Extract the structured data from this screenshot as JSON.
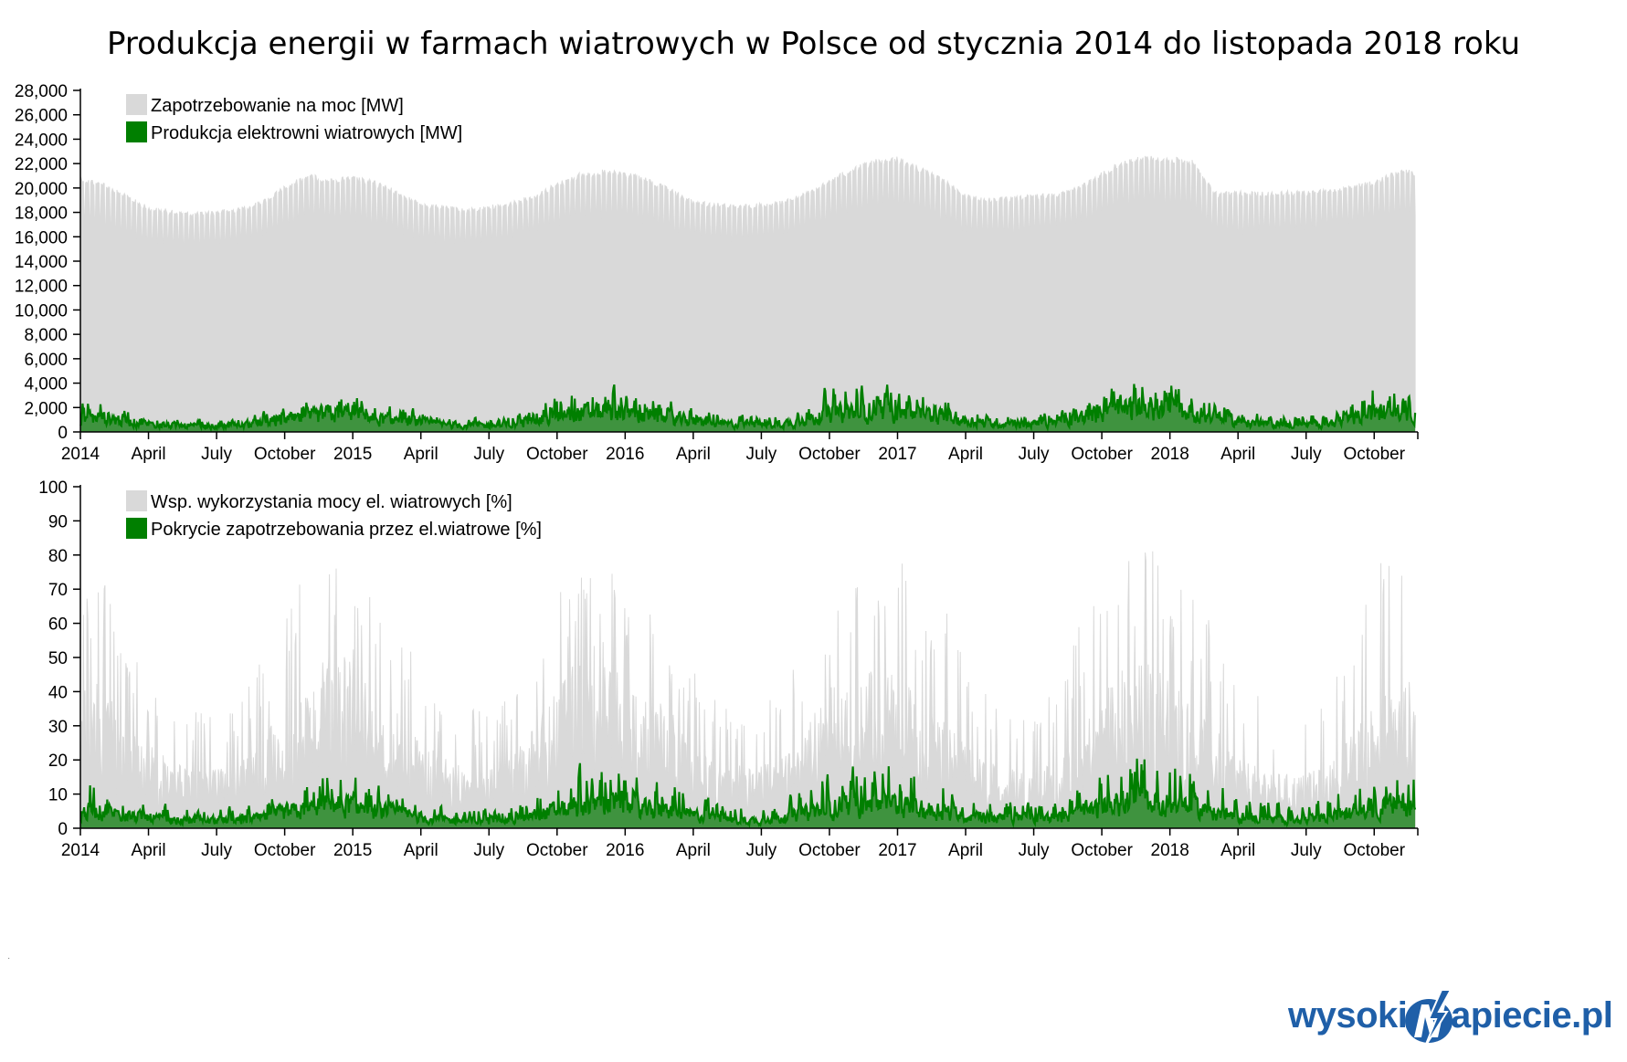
{
  "title": "Produkcja energii w farmach wiatrowych w Polsce od stycznia 2014 do listopada 2018 roku",
  "brand": {
    "pre": "wysokie",
    "post": "apiecie.pl",
    "logo_icon": "lightning-n-logo-icon",
    "color": "#1f5fa8"
  },
  "colors": {
    "demand": "#d9d9d9",
    "wind": "#007f00",
    "wind_fill": "#2e8b2e",
    "axis": "#000000"
  },
  "x_ticks": [
    "2014",
    "April",
    "July",
    "October",
    "2015",
    "April",
    "July",
    "October",
    "2016",
    "April",
    "July",
    "October",
    "2017",
    "April",
    "July",
    "October",
    "2018",
    "April",
    "July",
    "October"
  ],
  "chart_data": [
    {
      "type": "area",
      "x_range": [
        "2014-01",
        "2018-11"
      ],
      "ylim": [
        0,
        28000
      ],
      "y_ticks": [
        "0",
        "2,000",
        "4,000",
        "6,000",
        "8,000",
        "10,000",
        "12,000",
        "14,000",
        "16,000",
        "18,000",
        "20,000",
        "22,000",
        "24,000",
        "26,000",
        "28,000"
      ],
      "legend": [
        "Zapotrzebowanie na moc [MW]",
        "Produkcja elektrowni wiatrowych [MW]"
      ],
      "legend_position": "top-left",
      "series": [
        {
          "name": "Zapotrzebowanie na moc [MW]",
          "month_upper": [
            21000,
            20500,
            19500,
            18500,
            18200,
            18000,
            18200,
            18400,
            19000,
            20200,
            21200,
            20800,
            21000,
            20600,
            19800,
            18800,
            18600,
            18300,
            18600,
            18900,
            19500,
            20500,
            21300,
            21500,
            21400,
            20800,
            20000,
            19000,
            18800,
            18600,
            18800,
            19000,
            19700,
            20800,
            21700,
            22400,
            22600,
            21800,
            20800,
            19500,
            19200,
            19300,
            19500,
            19600,
            20200,
            21300,
            22400,
            22700,
            22600,
            22300,
            19700,
            19800,
            19700,
            19800,
            19800,
            19900,
            20300,
            20600,
            21500
          ],
          "month_lower": [
            16500,
            16000,
            15200,
            14800,
            14600,
            14500,
            14700,
            14800,
            15200,
            15900,
            16600,
            16500,
            16400,
            16000,
            15300,
            14900,
            14700,
            14600,
            14800,
            15000,
            15500,
            16100,
            16700,
            16800,
            16600,
            16200,
            15600,
            15200,
            15000,
            14900,
            15100,
            15300,
            15800,
            16500,
            17000,
            17200,
            17300,
            16900,
            16200,
            15600,
            15500,
            15400,
            15600,
            15800,
            16300,
            17000,
            17500,
            17700,
            17400,
            17000,
            15400,
            15500,
            15600,
            15700,
            15800,
            16000,
            16300,
            16600,
            17000
          ]
        },
        {
          "name": "Produkcja elektrowni wiatrowych [MW]",
          "month_mean": [
            1500,
            1600,
            1200,
            900,
            700,
            600,
            600,
            700,
            1000,
            1300,
            1500,
            2000,
            2000,
            1400,
            1300,
            1000,
            800,
            700,
            700,
            800,
            1200,
            1700,
            2000,
            2300,
            2100,
            1700,
            1500,
            1100,
            900,
            800,
            800,
            900,
            1300,
            1900,
            2200,
            2400,
            2300,
            1900,
            1700,
            1200,
            1000,
            900,
            900,
            1000,
            1500,
            2100,
            2500,
            2600,
            2400,
            2000,
            1600,
            1100,
            900,
            800,
            800,
            900,
            1400,
            2000,
            2300
          ],
          "month_peak": [
            3000,
            2900,
            2000,
            1700,
            1300,
            1200,
            1200,
            1300,
            1900,
            2500,
            3400,
            3500,
            3400,
            2500,
            2500,
            1900,
            1500,
            1400,
            1400,
            1500,
            2300,
            3900,
            4300,
            4400,
            4000,
            3200,
            3000,
            2200,
            1800,
            1600,
            1700,
            1800,
            2800,
            4500,
            4700,
            4800,
            4600,
            3600,
            3300,
            2300,
            1900,
            1800,
            1800,
            2000,
            2900,
            4000,
            4900,
            4900,
            4700,
            3900,
            3000,
            2200,
            1800,
            1700,
            1700,
            1900,
            2900,
            4600,
            4500
          ]
        }
      ]
    },
    {
      "type": "area",
      "x_range": [
        "2014-01",
        "2018-11"
      ],
      "ylim": [
        0,
        100
      ],
      "y_ticks": [
        "0",
        "10",
        "20",
        "30",
        "40",
        "50",
        "60",
        "70",
        "80",
        "90",
        "100"
      ],
      "legend": [
        "Wsp. wykorzystania mocy el. wiatrowych [%]",
        "Pokrycie zapotrzebowania przez el.wiatrowe [%]"
      ],
      "legend_position": "top-left",
      "series": [
        {
          "name": "Wsp. wykorzystania mocy el. wiatrowych [%]",
          "month_mean": [
            36,
            38,
            28,
            22,
            17,
            15,
            15,
            17,
            24,
            30,
            36,
            46,
            46,
            32,
            30,
            22,
            18,
            16,
            16,
            18,
            26,
            38,
            44,
            48,
            42,
            34,
            30,
            22,
            18,
            16,
            16,
            18,
            26,
            36,
            40,
            42,
            40,
            33,
            30,
            21,
            17,
            16,
            16,
            17,
            25,
            36,
            42,
            43,
            40,
            33,
            26,
            19,
            15,
            14,
            14,
            16,
            24,
            34,
            38
          ],
          "month_peak": [
            83,
            76,
            52,
            46,
            40,
            35,
            34,
            38,
            50,
            62,
            80,
            85,
            85,
            73,
            58,
            48,
            40,
            36,
            36,
            40,
            58,
            71,
            75,
            77,
            72,
            64,
            60,
            46,
            38,
            34,
            36,
            40,
            60,
            71,
            77,
            81,
            80,
            69,
            66,
            48,
            40,
            38,
            38,
            42,
            60,
            73,
            80,
            83,
            80,
            70,
            58,
            44,
            38,
            34,
            34,
            40,
            60,
            79,
            79
          ]
        },
        {
          "name": "Pokrycie zapotrzebowania przez el.wiatrowe [%]",
          "month_mean": [
            6,
            7,
            5,
            4,
            3,
            3,
            3,
            3,
            4,
            6,
            7,
            9,
            9,
            6,
            6,
            4,
            3,
            3,
            3,
            3,
            5,
            7,
            8,
            10,
            9,
            7,
            6,
            5,
            4,
            3,
            3,
            4,
            6,
            8,
            9,
            10,
            9,
            7,
            7,
            5,
            4,
            4,
            4,
            4,
            6,
            8,
            10,
            10,
            9,
            8,
            6,
            4,
            4,
            3,
            3,
            4,
            6,
            8,
            9
          ],
          "month_peak": [
            17,
            16,
            11,
            9,
            8,
            7,
            7,
            8,
            11,
            14,
            17,
            19,
            19,
            14,
            13,
            10,
            8,
            7,
            7,
            8,
            12,
            18,
            21,
            22,
            20,
            17,
            16,
            12,
            10,
            9,
            9,
            10,
            15,
            21,
            23,
            25,
            24,
            19,
            18,
            13,
            11,
            10,
            10,
            11,
            15,
            20,
            26,
            27,
            28,
            22,
            18,
            13,
            11,
            10,
            10,
            12,
            16,
            22,
            22
          ]
        }
      ]
    }
  ]
}
